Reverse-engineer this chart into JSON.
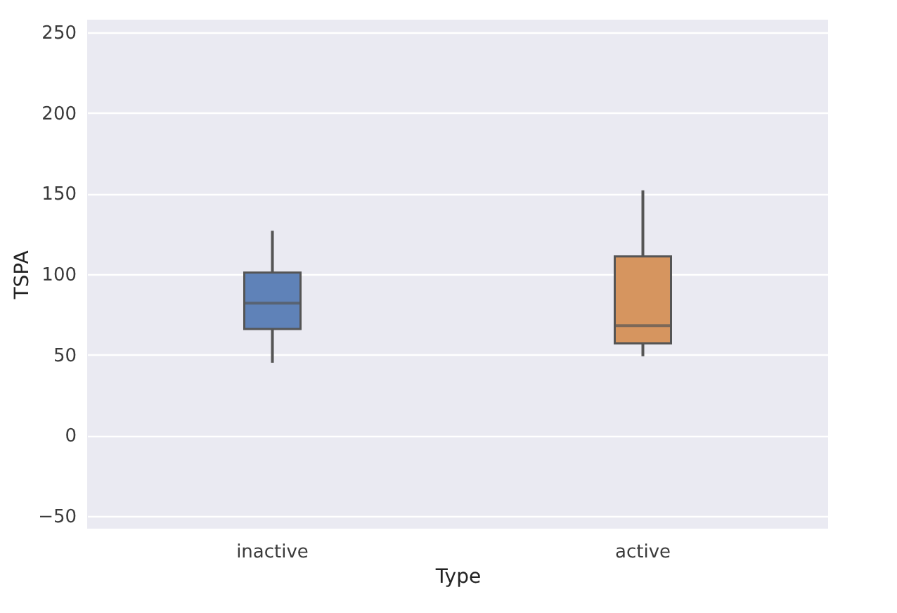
{
  "chart_data": {
    "type": "box",
    "xlabel": "Type",
    "ylabel": "TSPA",
    "categories": [
      "inactive",
      "active"
    ],
    "colors": [
      "#5f82b8",
      "#d6955f"
    ],
    "boxes": [
      {
        "low": 45,
        "q1": 66,
        "median": 82,
        "q3": 101,
        "high": 127
      },
      {
        "low": 49,
        "q1": 57,
        "median": 68,
        "q3": 111,
        "high": 152
      }
    ],
    "ylim": [
      -58,
      258
    ],
    "yticks": [
      -50,
      0,
      50,
      100,
      150,
      200,
      250
    ],
    "grid": "y"
  }
}
